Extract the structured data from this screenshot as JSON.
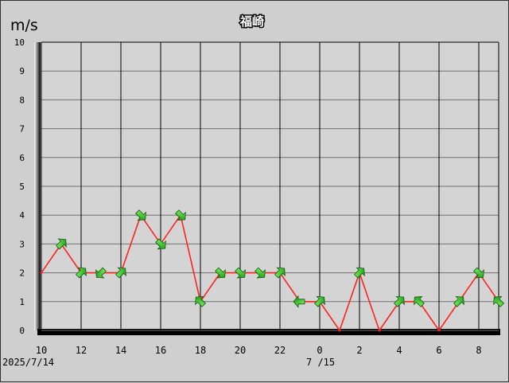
{
  "chart_data": {
    "type": "line",
    "title": "福崎",
    "ylabel": "m/s",
    "ylim": [
      0,
      10
    ],
    "y_ticks": [
      "0",
      "1",
      "2",
      "3",
      "4",
      "5",
      "6",
      "7",
      "8",
      "9",
      "10"
    ],
    "x_ticks": [
      "10",
      "12",
      "14",
      "16",
      "18",
      "20",
      "22",
      "0",
      "2",
      "4",
      "6",
      "8"
    ],
    "date_labels": [
      "2025/7/14",
      "7 /15"
    ],
    "x": [
      "10",
      "11",
      "12",
      "13",
      "14",
      "15",
      "16",
      "17",
      "18",
      "19",
      "20",
      "21",
      "22",
      "23",
      "0",
      "1",
      "2",
      "3",
      "4",
      "5",
      "6",
      "7",
      "8",
      "9"
    ],
    "series": [
      {
        "values": [
          2,
          3,
          2,
          2,
          2,
          4,
          3,
          4,
          1,
          2,
          2,
          2,
          2,
          1,
          1,
          0,
          2,
          0,
          1,
          1,
          0,
          1,
          2,
          1
        ]
      }
    ],
    "arrows": [
      "",
      "NE",
      "NE",
      "SW",
      "NE",
      "SE",
      "SE",
      "SE",
      "NW",
      "SE",
      "SE",
      "SE",
      "NE",
      "W",
      "NE",
      "",
      "NE",
      "",
      "NE",
      "NW",
      "",
      "NE",
      "SE",
      "NW"
    ],
    "grid": true,
    "colors": {
      "line": "#ff2020",
      "arrow": "#22cc22",
      "grid": "#707070",
      "plot_bg": "#d4d4d4"
    }
  }
}
